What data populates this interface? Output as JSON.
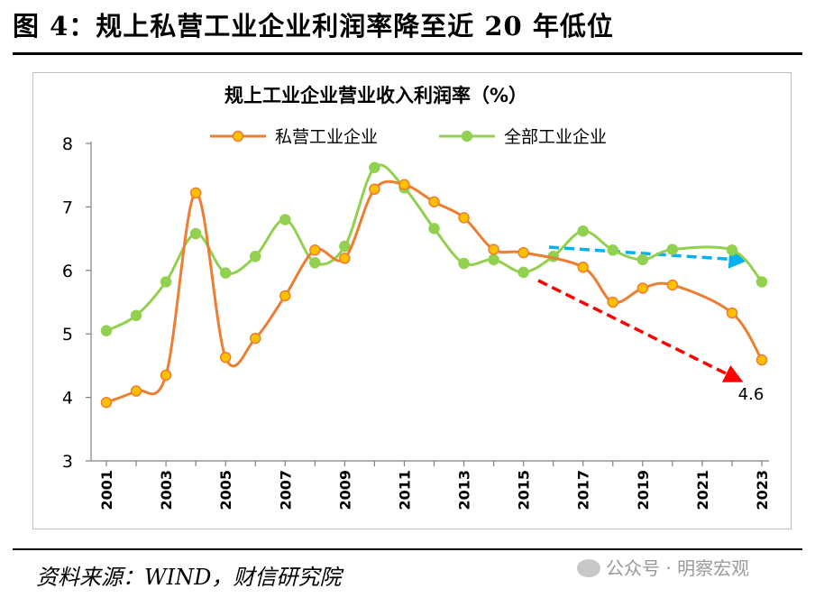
{
  "figure_title": "图 4：规上私营工业企业利润率降至近 20 年低位",
  "source_text": "资料来源：WIND，财信研究院",
  "watermark": "公众号 · 明察宏观",
  "colors": {
    "private": "#ed7d31",
    "private_marker": "#ffc000",
    "all": "#92d050",
    "arrow_red": "#ff0000",
    "arrow_blue": "#00b0f0"
  },
  "chart_data": {
    "type": "line",
    "title": "规上工业企业营业收入利润率（%）",
    "xlabel": "",
    "ylabel": "",
    "x": [
      2001,
      2002,
      2003,
      2004,
      2005,
      2006,
      2007,
      2008,
      2009,
      2010,
      2011,
      2012,
      2013,
      2014,
      2015,
      2016,
      2017,
      2018,
      2019,
      2020,
      2021,
      2022,
      2023
    ],
    "x_tick_labels": [
      "2001",
      "2003",
      "2005",
      "2007",
      "2009",
      "2011",
      "2013",
      "2015",
      "2017",
      "2019",
      "2021",
      "2023"
    ],
    "y_ticks": [
      "3",
      "4",
      "5",
      "6",
      "7",
      "8"
    ],
    "ylim": [
      3,
      8
    ],
    "legend_position": "top",
    "series": [
      {
        "name": "私营工业企业",
        "values": [
          3.92,
          4.1,
          4.35,
          7.22,
          4.63,
          4.93,
          5.6,
          6.32,
          6.19,
          7.28,
          7.35,
          7.08,
          6.83,
          6.33,
          6.28,
          null,
          6.05,
          5.5,
          5.72,
          5.77,
          null,
          5.33,
          4.59
        ]
      },
      {
        "name": "全部工业企业",
        "values": [
          5.05,
          5.29,
          5.82,
          6.58,
          5.96,
          6.22,
          6.8,
          6.12,
          6.38,
          7.62,
          7.3,
          6.66,
          6.11,
          6.17,
          5.97,
          6.22,
          6.62,
          6.32,
          6.17,
          6.33,
          null,
          6.32,
          5.82
        ]
      }
    ],
    "annotation": "4.6"
  }
}
